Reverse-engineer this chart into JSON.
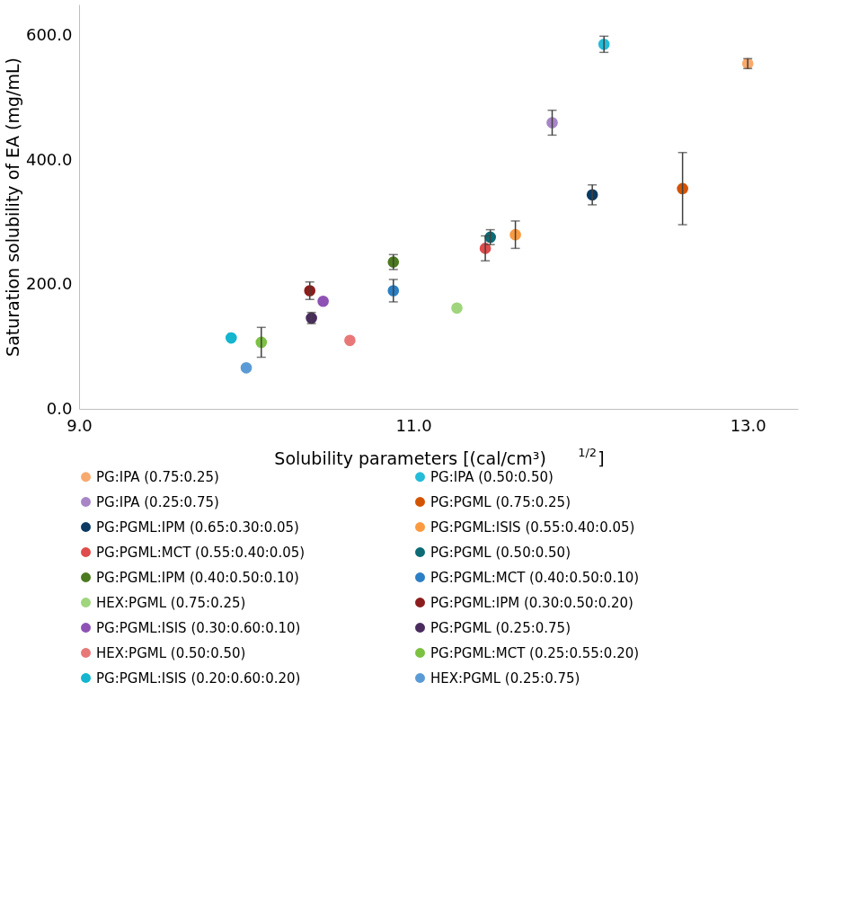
{
  "chart_data": {
    "type": "scatter",
    "xlabel": "Solubility parameters [(cal/cm³)$^{1/2}$]",
    "ylabel": "Saturation solubility of EA (mg/mL)",
    "xlim": [
      9.0,
      13.3
    ],
    "xticks": [
      {
        "value": 9,
        "label": "9.0"
      },
      {
        "value": 11,
        "label": "11.0"
      },
      {
        "value": 13,
        "label": "13.0"
      }
    ],
    "ylim": [
      0,
      650
    ],
    "yticks": [
      {
        "value": 0,
        "label": "0.0"
      },
      {
        "value": 200,
        "label": "200.0"
      },
      {
        "value": 400,
        "label": "400.0"
      },
      {
        "value": 600,
        "label": "600.0"
      }
    ],
    "grid": false,
    "legend": "bottom",
    "marker": "circle",
    "series": [
      {
        "name": "PG:IPA (0.75:0.25)",
        "color": "#f8a96e",
        "x": [
          13.0
        ],
        "values": [
          555
        ],
        "errors": [
          8
        ]
      },
      {
        "name": "PG:IPA (0.50:0.50)",
        "color": "#24bcd8",
        "x": [
          12.14
        ],
        "values": [
          586
        ],
        "errors": [
          13
        ]
      },
      {
        "name": "PG:IPA (0.25:0.75)",
        "color": "#a785c6",
        "x": [
          11.83
        ],
        "values": [
          460
        ],
        "errors": [
          20
        ]
      },
      {
        "name": "PG:PGML (0.75:0.25)",
        "color": "#d35400",
        "x": [
          12.61
        ],
        "values": [
          354
        ],
        "errors": [
          58
        ]
      },
      {
        "name": "PG:PGML:IPM (0.65:0.30:0.05)",
        "color": "#0b3a62",
        "x": [
          12.07
        ],
        "values": [
          344
        ],
        "errors": [
          16
        ]
      },
      {
        "name": "PG:PGML:ISIS (0.55:0.40:0.05)",
        "color": "#fb9a3f",
        "x": [
          11.61
        ],
        "values": [
          280
        ],
        "errors": [
          22
        ]
      },
      {
        "name": "PG:PGML:MCT (0.55:0.40:0.05)",
        "color": "#e04b4b",
        "x": [
          11.43
        ],
        "values": [
          258
        ],
        "errors": [
          20
        ]
      },
      {
        "name": "PG:PGML (0.50:0.50)",
        "color": "#0c6b75",
        "x": [
          11.46
        ],
        "values": [
          276
        ],
        "errors": [
          12
        ]
      },
      {
        "name": "PG:PGML:IPM (0.40:0.50:0.10)",
        "color": "#4b7a1f",
        "x": [
          10.88
        ],
        "values": [
          236
        ],
        "errors": [
          12
        ]
      },
      {
        "name": "PG:PGML:MCT (0.40:0.50:0.10)",
        "color": "#2b7fc4",
        "x": [
          10.88
        ],
        "values": [
          190
        ],
        "errors": [
          18
        ]
      },
      {
        "name": "HEX:PGML (0.75:0.25)",
        "color": "#9fd57c",
        "x": [
          11.26
        ],
        "values": [
          162
        ],
        "errors": [
          null
        ]
      },
      {
        "name": "PG:PGML:IPM (0.30:0.50:0.20)",
        "color": "#8b1d1d",
        "x": [
          10.38
        ],
        "values": [
          190
        ],
        "errors": [
          14
        ]
      },
      {
        "name": "PG:PGML:ISIS (0.30:0.60:0.10)",
        "color": "#8e52b5",
        "x": [
          10.46
        ],
        "values": [
          173
        ],
        "errors": [
          null
        ]
      },
      {
        "name": "PG:PGML (0.25:0.75)",
        "color": "#4a2c5e",
        "x": [
          10.39
        ],
        "values": [
          146
        ],
        "errors": [
          9
        ]
      },
      {
        "name": "HEX:PGML (0.50:0.50)",
        "color": "#e87878",
        "x": [
          10.62
        ],
        "values": [
          110
        ],
        "errors": [
          null
        ]
      },
      {
        "name": "PG:PGML:MCT (0.25:0.55:0.20)",
        "color": "#7cc142",
        "x": [
          10.09
        ],
        "values": [
          107
        ],
        "errors": [
          24
        ]
      },
      {
        "name": "PG:PGML:ISIS (0.20:0.60:0.20)",
        "color": "#13b5cf",
        "x": [
          9.91
        ],
        "values": [
          114
        ],
        "errors": [
          null
        ]
      },
      {
        "name": "HEX:PGML (0.25:0.75)",
        "color": "#5b9bd5",
        "x": [
          10.0
        ],
        "values": [
          66
        ],
        "errors": [
          null
        ]
      }
    ]
  }
}
